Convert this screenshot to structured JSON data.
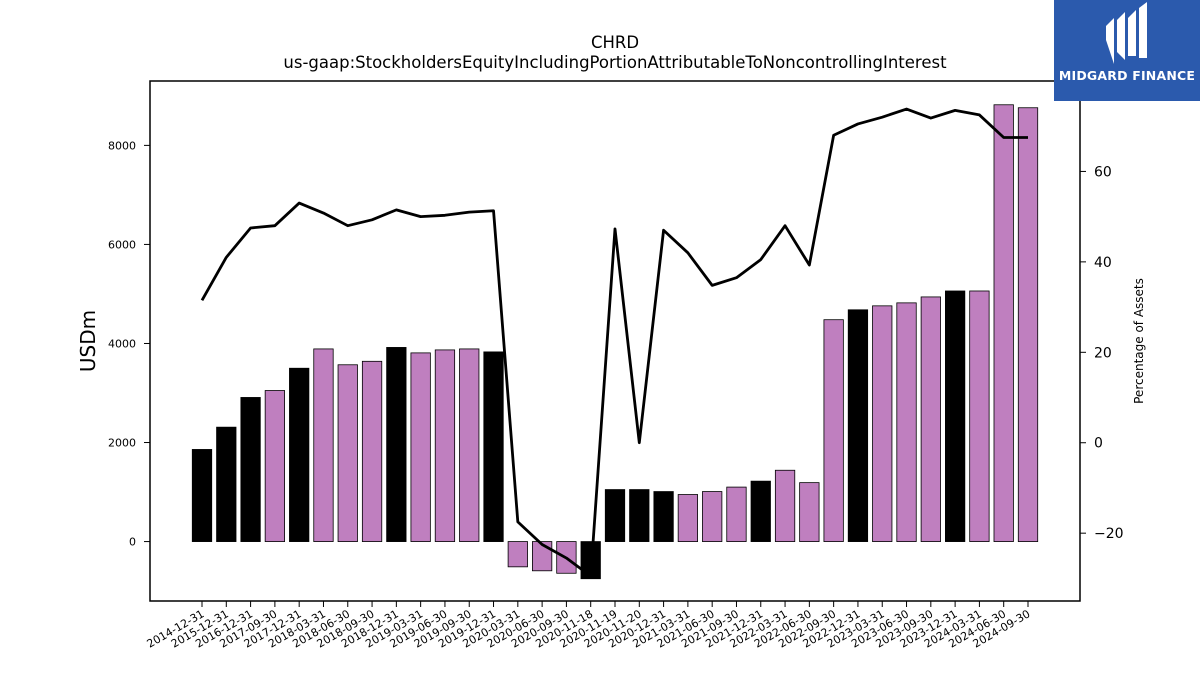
{
  "title": {
    "line1": "CHRD",
    "line2": "us-gaap:StockholdersEquityIncludingPortionAttributableToNoncontrollingInterest"
  },
  "logo": {
    "text": "MIDGARD FINANCE",
    "background": "#2b5aad"
  },
  "colors": {
    "bar_black": "#000000",
    "bar_purple": "#bf7fbf",
    "line": "#000000"
  },
  "chart_data": {
    "type": "bar",
    "ylabel": "USDm",
    "y2label": "Percentage of Assets",
    "ylim": [
      -1200,
      9300
    ],
    "y2lim": [
      -35,
      80
    ],
    "yticks": [
      0,
      2000,
      4000,
      6000,
      8000
    ],
    "y2ticks": [
      -20,
      0,
      20,
      40,
      60
    ],
    "grid": false,
    "categories": [
      "2014-12-31",
      "2015-12-31",
      "2016-12-31",
      "2017-09-30",
      "2017-12-31",
      "2018-03-31",
      "2018-06-30",
      "2018-09-30",
      "2018-12-31",
      "2019-03-31",
      "2019-06-30",
      "2019-09-30",
      "2019-12-31",
      "2020-03-31",
      "2020-06-30",
      "2020-09-30",
      "2020-11-18",
      "2020-11-19",
      "2020-11-20",
      "2020-12-31",
      "2021-03-31",
      "2021-06-30",
      "2021-09-30",
      "2021-12-31",
      "2022-03-31",
      "2022-06-30",
      "2022-09-30",
      "2022-12-31",
      "2023-03-31",
      "2023-06-30",
      "2023-09-30",
      "2023-12-31",
      "2024-03-31",
      "2024-06-30",
      "2024-09-30"
    ],
    "series": [
      {
        "type": "bar",
        "axis": "left",
        "values": [
          1860,
          2310,
          2910,
          3050,
          3500,
          3890,
          3570,
          3640,
          3920,
          3810,
          3870,
          3890,
          3830,
          -510,
          -590,
          -640,
          -750,
          1050,
          1050,
          1010,
          950,
          1010,
          1100,
          1220,
          1440,
          1190,
          4480,
          4680,
          4760,
          4820,
          4940,
          5060,
          5060,
          8820,
          8760
        ],
        "colors": [
          "black",
          "black",
          "black",
          "purple",
          "black",
          "purple",
          "purple",
          "purple",
          "black",
          "purple",
          "purple",
          "purple",
          "black",
          "purple",
          "purple",
          "purple",
          "black",
          "black",
          "black",
          "black",
          "purple",
          "purple",
          "purple",
          "black",
          "purple",
          "purple",
          "purple",
          "black",
          "purple",
          "purple",
          "purple",
          "black",
          "purple",
          "purple",
          "purple"
        ]
      },
      {
        "type": "line",
        "axis": "right",
        "values": [
          31.5,
          41,
          47.5,
          48,
          53,
          50.8,
          48,
          49.3,
          51.5,
          50,
          50.3,
          51,
          51.3,
          -17.5,
          -22.5,
          -25.5,
          -29.5,
          47.3,
          0,
          47,
          42,
          34.8,
          36.5,
          40.5,
          48,
          39.3,
          68,
          70.5,
          72,
          73.8,
          71.8,
          73.5,
          72.5,
          67.5,
          67.5
        ]
      }
    ]
  }
}
